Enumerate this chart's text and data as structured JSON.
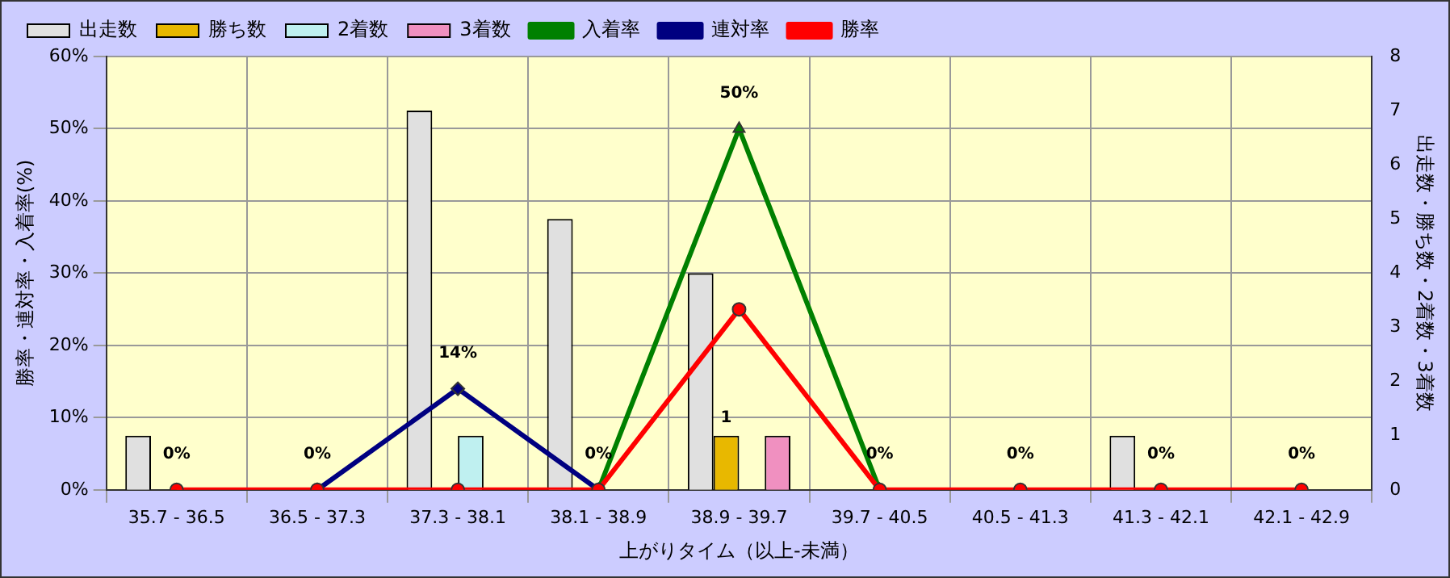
{
  "chart_data": {
    "type": "bar",
    "xlabel": "上がりタイム（以上-未満）",
    "ylabel": "勝率・連対率・入着率(%)",
    "y2label": "出走数・勝ち数・2着数・3着数",
    "categories": [
      "35.7 - 36.5",
      "36.5 - 37.3",
      "37.3 - 38.1",
      "38.1 - 38.9",
      "38.9 - 39.7",
      "39.7 - 40.5",
      "40.5 - 41.3",
      "41.3 - 42.1",
      "42.1 - 42.9"
    ],
    "series": [
      {
        "name": "出走数",
        "axis": "y2",
        "color": "#e0e0e0",
        "values": [
          1,
          0,
          7,
          5,
          4,
          0,
          0,
          1,
          0
        ]
      },
      {
        "name": "勝ち数",
        "axis": "y2",
        "color": "#e8b800",
        "values": [
          0,
          0,
          0,
          0,
          1,
          0,
          0,
          0,
          0
        ],
        "value_labels": [
          null,
          null,
          null,
          null,
          "1",
          null,
          null,
          null,
          null
        ]
      },
      {
        "name": "2着数",
        "axis": "y2",
        "color": "#bff0f0",
        "values": [
          0,
          0,
          1,
          0,
          0,
          0,
          0,
          0,
          0
        ]
      },
      {
        "name": "3着数",
        "axis": "y2",
        "color": "#f090c0",
        "values": [
          0,
          0,
          0,
          0,
          1,
          0,
          0,
          0,
          0
        ]
      },
      {
        "name": "入着率",
        "type": "line",
        "marker": "triangle",
        "color": "#008000",
        "values": [
          null,
          null,
          null,
          0,
          50,
          0,
          null,
          null,
          null
        ],
        "value_labels": [
          null,
          null,
          null,
          "0%",
          "50%",
          "0%",
          null,
          null,
          null
        ]
      },
      {
        "name": "連対率",
        "type": "line",
        "marker": "diamond",
        "color": "#000080",
        "values": [
          null,
          0,
          14,
          0,
          null,
          null,
          null,
          null,
          null
        ],
        "value_labels": [
          null,
          null,
          "14%",
          null,
          null,
          null,
          null,
          null,
          null
        ]
      },
      {
        "name": "勝率",
        "type": "line",
        "marker": "circle",
        "color": "#ff0000",
        "values": [
          0,
          0,
          0,
          0,
          25,
          0,
          0,
          0,
          0
        ],
        "value_labels": [
          "0%",
          "0%",
          null,
          null,
          null,
          null,
          "0%",
          "0%",
          "0%"
        ]
      }
    ],
    "ylim": [
      0,
      60
    ],
    "yticks": [
      {
        "value": 0,
        "label": "0%"
      },
      {
        "value": 10,
        "label": "10%"
      },
      {
        "value": 20,
        "label": "20%"
      },
      {
        "value": 30,
        "label": "30%"
      },
      {
        "value": 40,
        "label": "40%"
      },
      {
        "value": 50,
        "label": "50%"
      },
      {
        "value": 60,
        "label": "60%"
      }
    ],
    "y2lim": [
      0,
      8
    ],
    "y2ticks": [
      0,
      1,
      2,
      3,
      4,
      5,
      6,
      7,
      8
    ],
    "grid": true,
    "legend": "top left"
  }
}
